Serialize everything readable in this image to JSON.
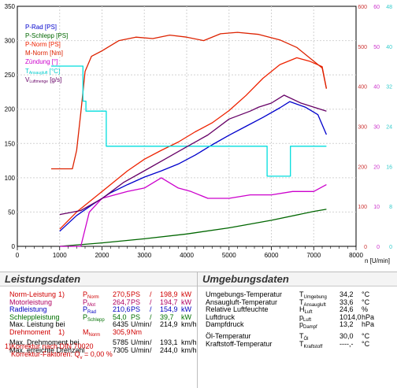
{
  "chart_data": {
    "type": "line",
    "xlabel": "n [U/min]",
    "xlim": [
      0,
      8000
    ],
    "x_ticks": [
      "0",
      "1000",
      "2000",
      "3000",
      "4000",
      "5000",
      "6000",
      "7000",
      "8000"
    ],
    "left_axis": {
      "lim": [
        0,
        350
      ],
      "ticks": [
        "0",
        "50",
        "100",
        "150",
        "200",
        "250",
        "300",
        "350"
      ]
    },
    "right_axes": [
      {
        "color": "#cc3333",
        "ticks": [
          "0",
          "100",
          "200",
          "300",
          "400",
          "500",
          "600"
        ]
      },
      {
        "color": "#cc33cc",
        "ticks": [
          "0",
          "10",
          "20",
          "30",
          "40",
          "50",
          "60"
        ]
      },
      {
        "color": "#33cccc",
        "ticks": [
          "0",
          "8",
          "16",
          "24",
          "32",
          "40",
          "48"
        ]
      }
    ],
    "grid": true,
    "legend_position": "top-left",
    "series": [
      {
        "name": "P-Rad [PS]",
        "color": "#0000cc",
        "x": [
          1000,
          1400,
          1800,
          2200,
          2600,
          3000,
          3400,
          3800,
          4200,
          4600,
          5000,
          5400,
          5800,
          6200,
          6435,
          6800,
          7100,
          7300
        ],
        "y": [
          22,
          45,
          62,
          78,
          90,
          101,
          110,
          120,
          133,
          148,
          162,
          175,
          188,
          202,
          211,
          203,
          192,
          163
        ]
      },
      {
        "name": "P-Schlepp [PS]",
        "color": "#006600",
        "x": [
          1000,
          2000,
          3000,
          4000,
          5000,
          6000,
          7000,
          7300
        ],
        "y": [
          0,
          5,
          11,
          18,
          27,
          38,
          51,
          54
        ]
      },
      {
        "name": "P-Norm [PS]",
        "color": "#ee2200",
        "x": [
          1000,
          1400,
          1800,
          2200,
          2600,
          3000,
          3400,
          3800,
          4200,
          4600,
          5000,
          5400,
          5800,
          6200,
          6600,
          6900,
          7200,
          7300
        ],
        "y": [
          25,
          50,
          70,
          90,
          110,
          127,
          140,
          152,
          167,
          180,
          198,
          220,
          245,
          265,
          275,
          270,
          262,
          230
        ]
      },
      {
        "name": "M-Norm [Nm]",
        "color": "#dd2200",
        "x": [
          800,
          1300,
          1400,
          1500,
          1600,
          1750,
          2000,
          2400,
          2800,
          3200,
          3600,
          4000,
          4400,
          4800,
          5200,
          5700,
          6200,
          6600,
          6900,
          7200,
          7300
        ],
        "y": [
          113,
          113,
          140,
          195,
          255,
          277,
          285,
          300,
          305,
          303,
          308,
          305,
          300,
          310,
          312,
          309,
          301,
          290,
          275,
          260,
          230
        ]
      },
      {
        "name": "Zündung [°]",
        "color": "#cc00cc",
        "x": [
          1000,
          1500,
          1700,
          2000,
          2600,
          3000,
          3400,
          3800,
          4100,
          4500,
          5000,
          5500,
          6000,
          6500,
          7000,
          7300
        ],
        "y": [
          0,
          0,
          10,
          14,
          16,
          17,
          20,
          17,
          16,
          14,
          14,
          15,
          15,
          16,
          16,
          18
        ]
      },
      {
        "name": "T",
        "color": "#00dddd",
        "x": [
          800,
          1450,
          1550,
          1620,
          1700,
          2000,
          2100,
          2150,
          5500,
          5850,
          5900,
          6400,
          6450,
          7300
        ],
        "y": [
          36,
          36,
          29,
          27,
          27,
          27,
          20,
          20,
          20,
          20,
          14,
          14,
          20,
          20
        ]
      },
      {
        "name": "V",
        "color": "#660066",
        "x": [
          1000,
          1500,
          2000,
          2500,
          3000,
          3500,
          4000,
          4500,
          5000,
          5500,
          5700,
          6000,
          6300,
          6700,
          7000,
          7300
        ],
        "y": [
          8,
          9,
          12,
          16,
          19,
          22,
          25,
          28,
          32,
          34,
          35,
          36,
          38,
          36,
          35,
          34
        ]
      }
    ]
  },
  "leistung": {
    "title": "Leistungsdaten",
    "rows": [
      {
        "label": "Norm-Leistung",
        "fn": "1)",
        "sym": "P",
        "sub": "Norm",
        "v1": "270,5",
        "u1": "PS",
        "sep": "/",
        "v2": "198,9",
        "u2": "kW"
      },
      {
        "label": "Motorleistung",
        "fn": "",
        "sym": "P",
        "sub": "Mot",
        "v1": "264,7",
        "u1": "PS",
        "sep": "/",
        "v2": "194,7",
        "u2": "kW"
      },
      {
        "label": "Radleistung",
        "fn": "",
        "sym": "P",
        "sub": "Rad",
        "v1": "210,6",
        "u1": "PS",
        "sep": "/",
        "v2": "154,9",
        "u2": "kW"
      },
      {
        "label": "Schleppleistung",
        "fn": "",
        "sym": "P",
        "sub": "Schlepp",
        "v1": "54,0",
        "u1": "PS",
        "sep": "/",
        "v2": "39,7",
        "u2": "kW"
      },
      {
        "label": "Max. Leistung bei",
        "fn": "",
        "sym": "",
        "sub": "",
        "v1": "6435",
        "u1": "U/min",
        "sep": "/",
        "v2": "214,9",
        "u2": "km/h"
      }
    ],
    "moment_rows": [
      {
        "label": "Drehmoment",
        "fn": "1)",
        "sym": "M",
        "sub": "Norm",
        "v1": "305,9",
        "u1": "Nm",
        "sep": "",
        "v2": "",
        "u2": ""
      },
      {
        "label": "Max. Drehmoment bei",
        "fn": "",
        "sym": "",
        "sub": "",
        "v1": "5785",
        "u1": "U/min",
        "sep": "/",
        "v2": "193,1",
        "u2": "km/h"
      },
      {
        "label": "Max. erreichte Drehzahl",
        "fn": "",
        "sym": "",
        "sub": "",
        "v1": "7305",
        "u1": "U/min",
        "sep": "/",
        "v2": "244,0",
        "u2": "km/h"
      }
    ],
    "footnote_1": "1)Korrektur nach DIN 70020",
    "footnote_2_prefix": "Korrektur-Faktoren: Q",
    "footnote_2_sub": "v",
    "footnote_2_suffix": " =  0,00 %"
  },
  "umgebung": {
    "title": "Umgebungsdaten",
    "rows": [
      {
        "label": "Umgebungs-Temperatur",
        "sym": "T",
        "sub": "Umgebung",
        "val": "34,2",
        "unit": "°C"
      },
      {
        "label": "Ansaugluft-Temperatur",
        "sym": "T",
        "sub": "Ansaugluft",
        "val": "33,6",
        "unit": "°C"
      },
      {
        "label": "Relative Luftfeuchte",
        "sym": "H",
        "sub": "Luft",
        "val": "24,6",
        "unit": "%"
      },
      {
        "label": "Luftdruck",
        "sym": "p",
        "sub": "Luft",
        "val": "1014,0",
        "unit": "hPa"
      },
      {
        "label": "Dampfdruck",
        "sym": "p",
        "sub": "Dampf",
        "val": "13,2",
        "unit": "hPa"
      }
    ],
    "rows2": [
      {
        "label": "Öl-Temperatur",
        "sym": "T",
        "sub": "Öl",
        "val": "30,0",
        "unit": "°C"
      },
      {
        "label": "Kraftstoff-Temperatur",
        "sym": "T",
        "sub": "Kraftstoff",
        "val": "----,-",
        "unit": "°C"
      }
    ]
  },
  "legend_extra": {
    "t_sub": "Ansaugluft",
    "t_unit": " [°C]",
    "v_sub": "Luftmenge",
    "v_unit": " [g/s]"
  }
}
